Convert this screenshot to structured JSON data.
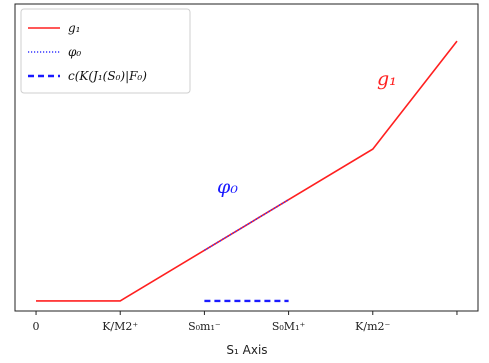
{
  "chart_data": {
    "type": "line",
    "title": "",
    "xlabel": "S₁ Axis",
    "ylabel": "",
    "grid": false,
    "legend_position": "top-left",
    "xlim": [
      -0.25,
      5.25
    ],
    "ylim": [
      -0.3,
      8.8
    ],
    "xticks": [
      {
        "value": 0,
        "label": "0"
      },
      {
        "value": 1,
        "label": "K/M2⁺"
      },
      {
        "value": 2,
        "label": "S₀m₁⁻"
      },
      {
        "value": 3,
        "label": "S₀M₁⁺"
      },
      {
        "value": 4,
        "label": "K/m2⁻"
      },
      {
        "value": 5,
        "label": ""
      }
    ],
    "series": [
      {
        "name": "g₁",
        "color": "#ff2020",
        "style": "solid",
        "x": [
          0,
          1,
          4,
          5
        ],
        "y": [
          0.0,
          0.0,
          4.5,
          7.7
        ]
      },
      {
        "name": "φ₀",
        "color": "#3333ff",
        "style": "dotted",
        "x": [
          2,
          3
        ],
        "y": [
          1.5,
          3.0
        ]
      },
      {
        "name": "c(K(J₁(S₀)|F₀)",
        "color": "#1a1aff",
        "style": "dashed",
        "x": [
          2,
          3
        ],
        "y": [
          0.0,
          0.0
        ]
      }
    ],
    "annotations": [
      {
        "text": "g₁",
        "x": 4.05,
        "y": 6.4,
        "color": "#ff2020"
      },
      {
        "text": "φ₀",
        "x": 2.15,
        "y": 3.2,
        "color": "#1a1aff"
      }
    ]
  }
}
